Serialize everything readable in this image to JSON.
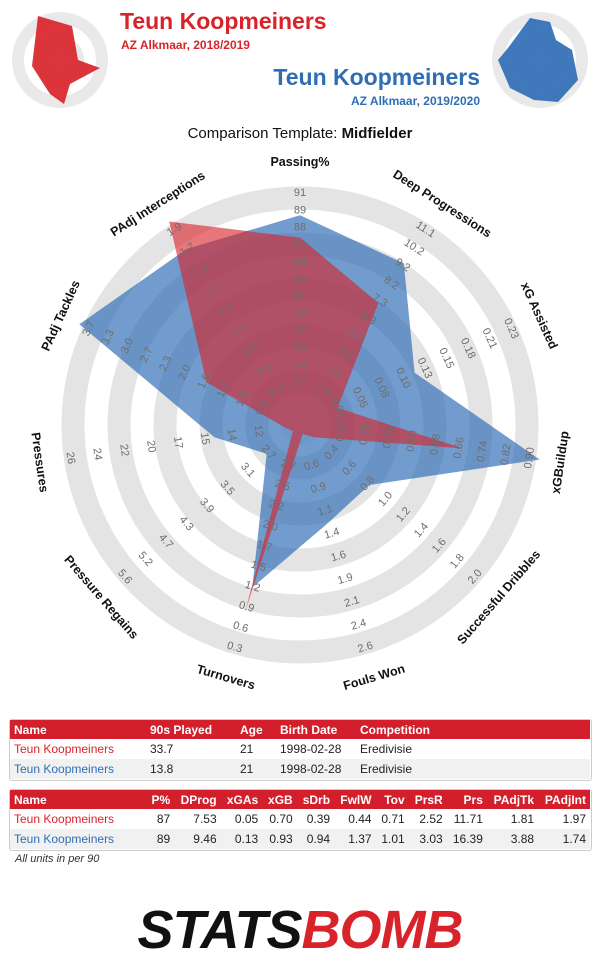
{
  "header": {
    "player1_name": "Teun Koopmeiners",
    "player1_sub": "AZ Alkmaar, 2018/2019",
    "player2_name": "Teun Koopmeiners",
    "player2_sub": "AZ Alkmaar, 2019/2020",
    "template_prefix": "Comparison Template: ",
    "template_name": "Midfielder"
  },
  "colors": {
    "player1": "#d8232a",
    "player2": "#2f6db5",
    "table_header": "#d31f2b"
  },
  "chart_data": {
    "type": "radar",
    "title": "",
    "axes": [
      {
        "label": "Passing%",
        "ticks": [
          "72",
          "74",
          "76",
          "77",
          "79",
          "81",
          "82",
          "84",
          "86",
          "88",
          "89",
          "91"
        ]
      },
      {
        "label": "Deep Progressions",
        "ticks": [
          "2.4",
          "3.4",
          "4.4",
          "5.3",
          "6.3",
          "7.3",
          "8.2",
          "9.2",
          "10.2",
          "11.1"
        ]
      },
      {
        "label": "xG Assisted",
        "ticks": [
          "0.03",
          "0.05",
          "0.08",
          "0.10",
          "0.13",
          "0.15",
          "0.18",
          "0.21",
          "0.23"
        ]
      },
      {
        "label": "xGBuildup",
        "ticks": [
          "0.27",
          "0.35",
          "0.43",
          "0.50",
          "0.58",
          "0.66",
          "0.74",
          "0.82",
          "0.90"
        ]
      },
      {
        "label": "Successful Dribbles",
        "ticks": [
          "0.4",
          "0.6",
          "0.8",
          "1.0",
          "1.2",
          "1.4",
          "1.6",
          "1.8",
          "2.0"
        ]
      },
      {
        "label": "Fouls Won",
        "ticks": [
          "0.6",
          "0.9",
          "1.1",
          "1.4",
          "1.6",
          "1.9",
          "2.1",
          "2.4",
          "2.6"
        ]
      },
      {
        "label": "Turnovers",
        "ticks": [
          "2.7",
          "2.5",
          "2.2",
          "2.0",
          "1.7",
          "1.5",
          "1.2",
          "0.9",
          "0.6",
          "0.3"
        ]
      },
      {
        "label": "Pressure Regains",
        "ticks": [
          "2.7",
          "3.1",
          "3.5",
          "3.9",
          "4.3",
          "4.7",
          "5.2",
          "5.6"
        ]
      },
      {
        "label": "Pressures",
        "ticks": [
          "12",
          "14",
          "15",
          "17",
          "20",
          "22",
          "24",
          "26"
        ]
      },
      {
        "label": "PAdj Tackles",
        "ticks": [
          "0.6",
          "1.0",
          "1.3",
          "1.6",
          "2.0",
          "2.3",
          "2.7",
          "3.0",
          "3.3",
          "3.7"
        ]
      },
      {
        "label": "PAdj Interceptions",
        "ticks": [
          "0.4",
          "0.6",
          "0.8",
          "1.0",
          "1.2",
          "1.4",
          "1.6",
          "1.7",
          "1.9"
        ]
      }
    ],
    "series": [
      {
        "name": "Teun Koopmeiners",
        "values": [
          87,
          7.53,
          0.05,
          0.7,
          0.39,
          0.44,
          0.71,
          2.52,
          11.71,
          1.81,
          1.97
        ]
      },
      {
        "name": "Teun Koopmeiners",
        "values": [
          89,
          9.46,
          0.13,
          0.93,
          0.94,
          1.37,
          1.01,
          3.03,
          16.39,
          3.88,
          1.74
        ]
      }
    ]
  },
  "info_table": {
    "headers": [
      "Name",
      "90s Played",
      "Age",
      "Birth Date",
      "Competition"
    ],
    "rows": [
      [
        "Teun Koopmeiners",
        "33.7",
        "21",
        "1998-02-28",
        "Eredivisie"
      ],
      [
        "Teun Koopmeiners",
        "13.8",
        "21",
        "1998-02-28",
        "Eredivisie"
      ]
    ]
  },
  "stats_table": {
    "headers": [
      "Name",
      "P%",
      "DProg",
      "xGAs",
      "xGB",
      "sDrb",
      "FwlW",
      "Tov",
      "PrsR",
      "Prs",
      "PAdjTk",
      "PAdjInt"
    ],
    "rows": [
      [
        "Teun Koopmeiners",
        "87",
        "7.53",
        "0.05",
        "0.70",
        "0.39",
        "0.44",
        "0.71",
        "2.52",
        "11.71",
        "1.81",
        "1.97"
      ],
      [
        "Teun Koopmeiners",
        "89",
        "9.46",
        "0.13",
        "0.93",
        "0.94",
        "1.37",
        "1.01",
        "3.03",
        "16.39",
        "3.88",
        "1.74"
      ]
    ]
  },
  "footer": {
    "units_note": "All units in per 90",
    "brand": "STATSBOMB"
  }
}
